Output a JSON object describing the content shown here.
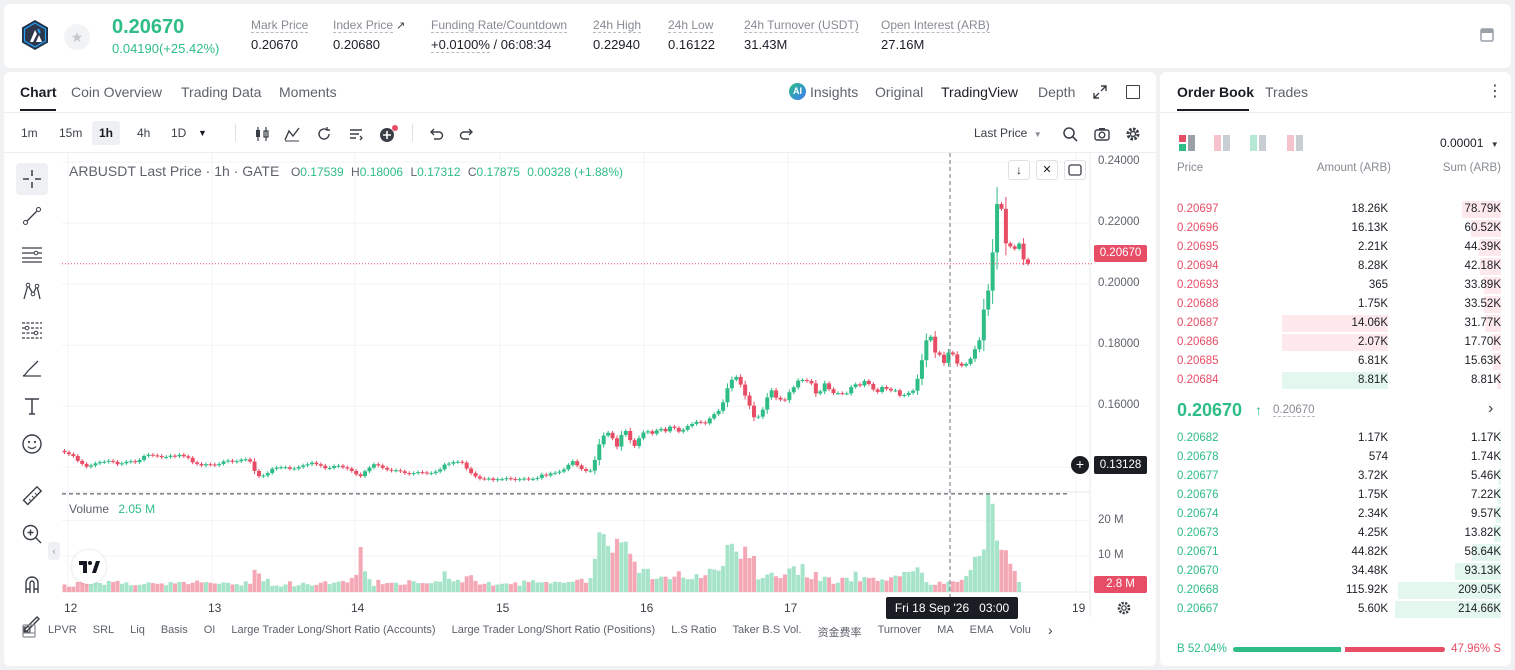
{
  "ticker": {
    "last_price": "0.20670",
    "change": "0.04190(+25.42%)",
    "stats": [
      {
        "label": "Mark Price",
        "value": "0.20670"
      },
      {
        "label": "Index Price",
        "value": "0.20680"
      },
      {
        "label": "Funding Rate/Countdown",
        "value": "+0.0100%",
        "value2": " / 06:08:34"
      },
      {
        "label": "24h High",
        "value": "0.22940"
      },
      {
        "label": "24h Low",
        "value": "0.16122"
      },
      {
        "label": "24h Turnover (USDT)",
        "value": "31.43M"
      },
      {
        "label": "Open Interest (ARB)",
        "value": "27.16M"
      }
    ]
  },
  "chart_tabs": [
    "Chart",
    "Coin Overview",
    "Trading Data",
    "Moments"
  ],
  "view_tabs": {
    "insights": "Insights",
    "items": [
      "Original",
      "TradingView",
      "Depth"
    ]
  },
  "intervals": [
    "1m",
    "15m",
    "1h",
    "4h",
    "1D"
  ],
  "price_type": "Last Price",
  "legend": {
    "symbol": "ARBUSDT Last Price · 1h · GATE",
    "o_label": "O",
    "o": "0.17539",
    "h_label": "H",
    "h": "0.18006",
    "l_label": "L",
    "l": "0.17312",
    "c_label": "C",
    "c": "0.17875",
    "change": "0.00328 (+1.88%)"
  },
  "volume_legend": {
    "label": "Volume",
    "value": "2.05 M"
  },
  "price_axis": [
    "0.24000",
    "0.22000",
    "0.20000",
    "0.18000",
    "0.16000",
    "0.14000"
  ],
  "current_price_tag": "0.20670",
  "crosshair_price_tag": "0.13128",
  "volume_axis": [
    "20 M",
    "10 M"
  ],
  "volume_tag": "2.8 M",
  "time_axis": [
    "12",
    "13",
    "14",
    "15",
    "16",
    "17",
    "19"
  ],
  "crosshair_time": "Fri 18 Sep '26   03:00",
  "indicators": [
    "LPVR",
    "SRL",
    "Liq",
    "Basis",
    "OI",
    "Large Trader Long/Short Ratio (Accounts)",
    "Large Trader Long/Short Ratio (Positions)",
    "L.S Ratio",
    "Taker B.S Vol.",
    "资金费率",
    "Turnover",
    "MA",
    "EMA",
    "Volu"
  ],
  "orderbook": {
    "tabs": [
      "Order Book",
      "Trades"
    ],
    "precision": "0.00001",
    "headers": {
      "price": "Price",
      "amount": "Amount (ARB)",
      "sum": "Sum (ARB)"
    },
    "asks": [
      {
        "price": "0.20697",
        "amount": "18.26K",
        "sum": "78.79K",
        "depth": 0.367
      },
      {
        "price": "0.20696",
        "amount": "16.13K",
        "sum": "60.52K",
        "depth": 0.282
      },
      {
        "price": "0.20695",
        "amount": "2.21K",
        "sum": "44.39K",
        "depth": 0.207
      },
      {
        "price": "0.20694",
        "amount": "8.28K",
        "sum": "42.18K",
        "depth": 0.196
      },
      {
        "price": "0.20693",
        "amount": "365",
        "sum": "33.89K",
        "depth": 0.158
      },
      {
        "price": "0.20688",
        "amount": "1.75K",
        "sum": "33.52K",
        "depth": 0.156
      },
      {
        "price": "0.20687",
        "amount": "14.06K",
        "sum": "31.77K",
        "depth": 0.148,
        "hl": 0.5
      },
      {
        "price": "0.20686",
        "amount": "2.07K",
        "sum": "17.70K",
        "depth": 0.082,
        "hl": 0.5
      },
      {
        "price": "0.20685",
        "amount": "6.81K",
        "sum": "15.63K",
        "depth": 0.073
      },
      {
        "price": "0.20684",
        "amount": "8.81K",
        "sum": "8.81K",
        "depth": 0.041,
        "hl": 0.5,
        "hlgreen": true
      }
    ],
    "mid_price": "0.20670",
    "mid_mark": "0.20670",
    "bids": [
      {
        "price": "0.20682",
        "amount": "1.17K",
        "sum": "1.17K",
        "depth": 0.005
      },
      {
        "price": "0.20678",
        "amount": "574",
        "sum": "1.74K",
        "depth": 0.008
      },
      {
        "price": "0.20677",
        "amount": "3.72K",
        "sum": "5.46K",
        "depth": 0.025
      },
      {
        "price": "0.20676",
        "amount": "1.75K",
        "sum": "7.22K",
        "depth": 0.034
      },
      {
        "price": "0.20674",
        "amount": "2.34K",
        "sum": "9.57K",
        "depth": 0.045
      },
      {
        "price": "0.20673",
        "amount": "4.25K",
        "sum": "13.82K",
        "depth": 0.064
      },
      {
        "price": "0.20671",
        "amount": "44.82K",
        "sum": "58.64K",
        "depth": 0.273
      },
      {
        "price": "0.20670",
        "amount": "34.48K",
        "sum": "93.13K",
        "depth": 0.434
      },
      {
        "price": "0.20668",
        "amount": "115.92K",
        "sum": "209.05K",
        "depth": 0.974
      },
      {
        "price": "0.20667",
        "amount": "5.60K",
        "sum": "214.66K",
        "depth": 1.0
      }
    ],
    "buy_pct": "B 52.04%",
    "sell_pct": "47.96% S",
    "buy_ratio": 0.5204
  },
  "colors": {
    "up": "#2ebd85",
    "down": "#e84d66",
    "accent": "#1a1d24"
  },
  "chart_data": {
    "type": "candlestick",
    "symbol": "ARBUSDT",
    "interval": "1h",
    "x_ticks": [
      "12",
      "13",
      "14",
      "15",
      "16",
      "17",
      "19"
    ],
    "y_ticks": [
      "0.24000",
      "0.22000",
      "0.20000",
      "0.18000",
      "0.16000",
      "0.14000"
    ],
    "ylim": [
      0.1319,
      0.243
    ],
    "volume_ylim": [
      0,
      28
    ],
    "volume_ticks": [
      "20 M",
      "10 M"
    ],
    "closes": [
      0.1449,
      0.1443,
      0.1437,
      0.1421,
      0.1411,
      0.1402,
      0.1406,
      0.1413,
      0.1417,
      0.1418,
      0.1421,
      0.1418,
      0.141,
      0.1413,
      0.1418,
      0.142,
      0.1417,
      0.1424,
      0.1437,
      0.1441,
      0.1439,
      0.1437,
      0.1433,
      0.1434,
      0.1438,
      0.1436,
      0.1441,
      0.1436,
      0.1431,
      0.1416,
      0.1411,
      0.1406,
      0.141,
      0.1409,
      0.1407,
      0.1411,
      0.1419,
      0.1422,
      0.1418,
      0.142,
      0.1425,
      0.1426,
      0.1419,
      0.1388,
      0.1371,
      0.1373,
      0.1381,
      0.1395,
      0.1399,
      0.14,
      0.14,
      0.1395,
      0.1396,
      0.1401,
      0.1406,
      0.141,
      0.1415,
      0.141,
      0.1405,
      0.1397,
      0.1398,
      0.1404,
      0.1405,
      0.14,
      0.1396,
      0.1388,
      0.1377,
      0.1371,
      0.1387,
      0.1399,
      0.141,
      0.1406,
      0.1398,
      0.1392,
      0.1389,
      0.139,
      0.1387,
      0.1381,
      0.1378,
      0.1381,
      0.1384,
      0.1383,
      0.138,
      0.1381,
      0.1386,
      0.1393,
      0.1409,
      0.1412,
      0.1417,
      0.1418,
      0.1415,
      0.1396,
      0.1381,
      0.137,
      0.1363,
      0.1362,
      0.1363,
      0.1358,
      0.1361,
      0.1361,
      0.1364,
      0.1362,
      0.1359,
      0.1361,
      0.1363,
      0.1361,
      0.1362,
      0.1365,
      0.1376,
      0.1373,
      0.138,
      0.1382,
      0.1386,
      0.1393,
      0.1408,
      0.142,
      0.1406,
      0.1394,
      0.1388,
      0.1389,
      0.1424,
      0.1475,
      0.1504,
      0.1513,
      0.1495,
      0.1468,
      0.1506,
      0.1519,
      0.1489,
      0.147,
      0.1495,
      0.1514,
      0.1518,
      0.151,
      0.1521,
      0.1526,
      0.1518,
      0.1533,
      0.1529,
      0.1517,
      0.1523,
      0.1535,
      0.1542,
      0.1549,
      0.1547,
      0.1544,
      0.156,
      0.1574,
      0.1585,
      0.1613,
      0.1659,
      0.1687,
      0.1696,
      0.1671,
      0.1635,
      0.1602,
      0.1564,
      0.1566,
      0.1589,
      0.1629,
      0.1652,
      0.1628,
      0.1622,
      0.162,
      0.1646,
      0.1662,
      0.1684,
      0.1686,
      0.1683,
      0.1675,
      0.1642,
      0.1649,
      0.1675,
      0.1656,
      0.1643,
      0.1643,
      0.1642,
      0.1642,
      0.1663,
      0.1672,
      0.1668,
      0.1683,
      0.1673,
      0.1655,
      0.1647,
      0.1663,
      0.1657,
      0.1652,
      0.1652,
      0.1635,
      0.1637,
      0.1644,
      0.1651,
      0.169,
      0.1751,
      0.1816,
      0.1828,
      0.1776,
      0.1769,
      0.1742,
      0.1776,
      0.177,
      0.174,
      0.1733,
      0.1739,
      0.1756,
      0.1787,
      0.1816,
      0.1917,
      0.1979,
      0.2104,
      0.2263,
      0.2247,
      0.2134,
      0.2124,
      0.2116,
      0.2133,
      0.2081,
      0.2067
    ],
    "volumes_m": [
      2.1,
      1.5,
      1.5,
      2.8,
      2.9,
      3.0,
      2.2,
      3.0,
      2.5,
      2.0,
      3.1,
      2.8,
      3.1,
      2.3,
      2.7,
      1.9,
      1.9,
      2.0,
      2.2,
      2.7,
      2.5,
      2.3,
      2.4,
      1.9,
      2.8,
      2.4,
      2.8,
      2.8,
      2.2,
      2.6,
      3.2,
      2.7,
      2.8,
      2.6,
      2.4,
      2.3,
      2.7,
      2.6,
      2.1,
      2.2,
      1.8,
      3.0,
      2.3,
      6.2,
      5.2,
      3.0,
      3.7,
      1.7,
      1.8,
      1.5,
      2.1,
      3.0,
      1.6,
      1.9,
      2.6,
      2.2,
      1.8,
      2.0,
      2.6,
      3.0,
      2.2,
      2.6,
      2.9,
      3.1,
      2.7,
      3.9,
      4.8,
      12.6,
      5.8,
      3.6,
      1.7,
      3.4,
      2.2,
      2.5,
      2.6,
      2.6,
      2.0,
      2.1,
      3.3,
      3.0,
      2.5,
      2.5,
      2.4,
      2.5,
      3.0,
      2.9,
      5.8,
      3.7,
      3.0,
      3.4,
      2.7,
      4.4,
      4.7,
      3.1,
      2.1,
      2.3,
      2.8,
      1.8,
      2.1,
      2.3,
      2.4,
      2.2,
      2.7,
      1.8,
      3.2,
      2.8,
      3.3,
      2.7,
      2.7,
      2.8,
      2.4,
      2.9,
      2.8,
      2.6,
      2.8,
      2.9,
      3.4,
      3.7,
      2.6,
      3.9,
      9.3,
      16.7,
      16.2,
      12.9,
      11.0,
      14.9,
      13.9,
      14.1,
      10.7,
      8.5,
      5.3,
      6.5,
      6.5,
      3.6,
      3.7,
      4.3,
      4.3,
      3.6,
      4.3,
      5.8,
      4.0,
      3.6,
      3.6,
      5.0,
      3.9,
      4.7,
      6.5,
      6.3,
      6.0,
      7.3,
      13.2,
      13.5,
      11.3,
      9.3,
      12.7,
      9.5,
      10.1,
      3.5,
      3.9,
      4.9,
      5.4,
      4.4,
      3.9,
      4.9,
      6.6,
      7.2,
      4.8,
      7.8,
      4.1,
      3.6,
      5.6,
      3.1,
      4.3,
      4.1,
      2.3,
      2.6,
      4.0,
      4.0,
      3.0,
      5.7,
      3.0,
      4.2,
      3.9,
      4.0,
      3.1,
      3.5,
      3.2,
      4.1,
      4.6,
      4.4,
      5.6,
      5.6,
      5.8,
      6.9,
      5.4,
      2.8,
      2.0,
      2.0,
      2.9,
      2.3,
      2.9,
      3.0,
      2.8,
      3.4,
      4.5,
      6.2,
      9.8,
      10.1,
      11.9,
      27.3,
      24.7,
      14.4,
      11.8,
      11.7,
      7.9,
      5.9,
      2.8
    ]
  }
}
